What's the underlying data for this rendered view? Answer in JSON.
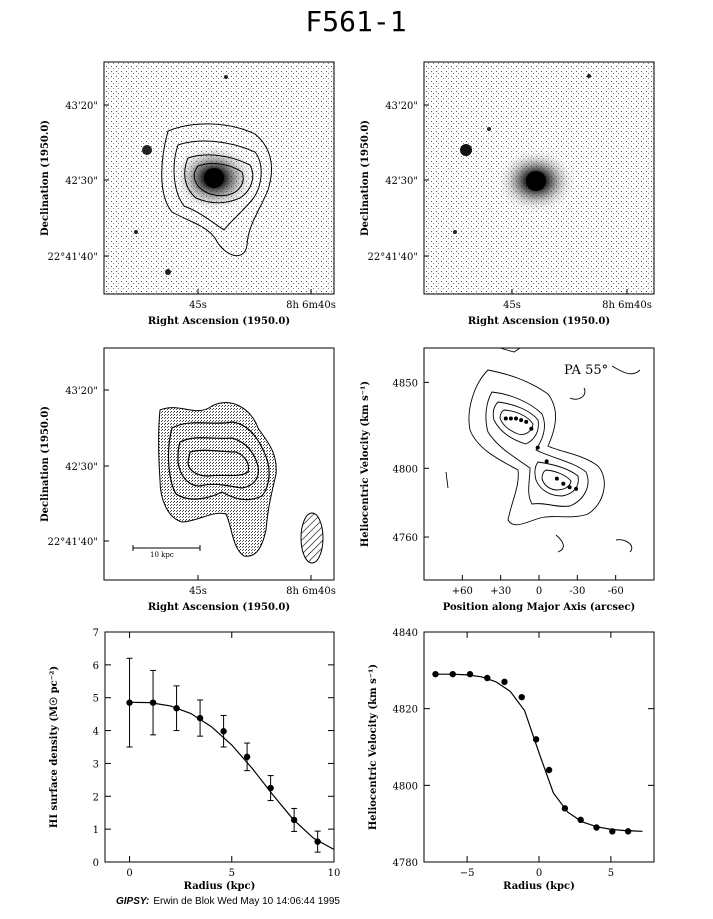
{
  "figure": {
    "title": "F561-1",
    "footer_prefix": "GIPSY:",
    "footer_text": "Erwin de Blok Wed May 10 14:06:44 1995"
  },
  "chart_data": [
    {
      "type": "image",
      "panel": "optical-with-hi-contours",
      "xlabel": "Right Ascension (1950.0)",
      "ylabel": "Declination (1950.0)",
      "x_ticklabels": [
        "45s",
        "8h 6m40s"
      ],
      "y_ticklabels": [
        "43'20\"",
        "42'30\"",
        "22°41'40\""
      ],
      "contours": true
    },
    {
      "type": "image",
      "panel": "optical",
      "xlabel": "Right Ascension (1950.0)",
      "ylabel": "Declination (1950.0)",
      "x_ticklabels": [
        "45s",
        "8h 6m40s"
      ],
      "y_ticklabels": [
        "43'20\"",
        "42'30\"",
        "22°41'40\""
      ]
    },
    {
      "type": "image",
      "panel": "hi-total-intensity",
      "xlabel": "Right Ascension (1950.0)",
      "ylabel": "Declination (1950.0)",
      "x_ticklabels": [
        "45s",
        "8h 6m40s"
      ],
      "y_ticklabels": [
        "43'20\"",
        "42'30\"",
        "22°41'40\""
      ],
      "scalebar_label": "10 kpc",
      "beam": "hatched ellipse"
    },
    {
      "type": "contour",
      "panel": "position-velocity",
      "annotation": "PA 55°",
      "xlabel": "Position along Major Axis (arcsec)",
      "ylabel": "Heliocentric Velocity (km s⁻¹)",
      "x_ticks": [
        60,
        30,
        0,
        -30,
        -60
      ],
      "x_ticklabels": [
        "+60",
        "+30",
        "0",
        "-30",
        "-60"
      ],
      "y_ticks": [
        4760,
        4800,
        4850
      ],
      "xlim": [
        90,
        -90
      ],
      "ylim": [
        4735,
        4870
      ],
      "rotation_curve_points": {
        "x": [
          26,
          22,
          18,
          14,
          10,
          6,
          1,
          -6,
          -14,
          -19,
          -24,
          -29
        ],
        "y": [
          4829,
          4829,
          4829,
          4828,
          4827,
          4823,
          4812,
          4804,
          4794,
          4791,
          4789,
          4788
        ]
      }
    },
    {
      "type": "line",
      "panel": "hi-surface-density",
      "xlabel": "Radius (kpc)",
      "ylabel": "HI surface density (M☉ pc⁻²)",
      "xlim": [
        -1.2,
        10
      ],
      "ylim": [
        0,
        7
      ],
      "x_ticks": [
        0,
        5,
        10
      ],
      "y_ticks": [
        0,
        1,
        2,
        3,
        4,
        5,
        6,
        7
      ],
      "series": [
        {
          "x": [
            0,
            1.15,
            2.3,
            3.45,
            4.6,
            5.75,
            6.9,
            8.05,
            9.2
          ],
          "y": [
            4.85,
            4.85,
            4.68,
            4.38,
            3.98,
            3.2,
            2.25,
            1.28,
            0.62
          ],
          "err": [
            1.35,
            0.98,
            0.68,
            0.55,
            0.48,
            0.42,
            0.38,
            0.35,
            0.32
          ]
        }
      ],
      "model_curve": {
        "x": [
          0,
          1,
          2,
          3,
          4,
          5,
          6,
          7,
          8,
          9,
          10
        ],
        "y": [
          4.86,
          4.85,
          4.75,
          4.52,
          4.12,
          3.56,
          2.85,
          2.05,
          1.3,
          0.72,
          0.38
        ]
      }
    },
    {
      "type": "line",
      "panel": "rotation-curve",
      "xlabel": "Radius (kpc)",
      "ylabel": "Heliocentric Velocity (km s⁻¹)",
      "xlim": [
        -8,
        8
      ],
      "ylim": [
        4780,
        4840
      ],
      "x_ticks": [
        -5,
        0,
        5
      ],
      "y_ticks": [
        4780,
        4800,
        4820,
        4840
      ],
      "series": [
        {
          "x": [
            -7.2,
            -6.0,
            -4.8,
            -3.6,
            -2.4,
            -1.2,
            -0.2,
            0.7,
            1.8,
            2.9,
            4.0,
            5.1,
            6.2
          ],
          "y": [
            4829,
            4829,
            4829,
            4828,
            4827,
            4823,
            4812,
            4804,
            4794,
            4791,
            4789,
            4788,
            4788
          ]
        }
      ],
      "model_curve": {
        "x": [
          -7.2,
          -6,
          -5,
          -4,
          -3,
          -2,
          -1,
          0,
          1,
          2,
          3,
          4,
          5,
          6,
          7.2
        ],
        "y": [
          4829,
          4829,
          4828.8,
          4828.3,
          4827,
          4824.5,
          4819.5,
          4808.5,
          4798,
          4793,
          4790.5,
          4789.2,
          4788.5,
          4788.2,
          4788
        ]
      }
    }
  ]
}
